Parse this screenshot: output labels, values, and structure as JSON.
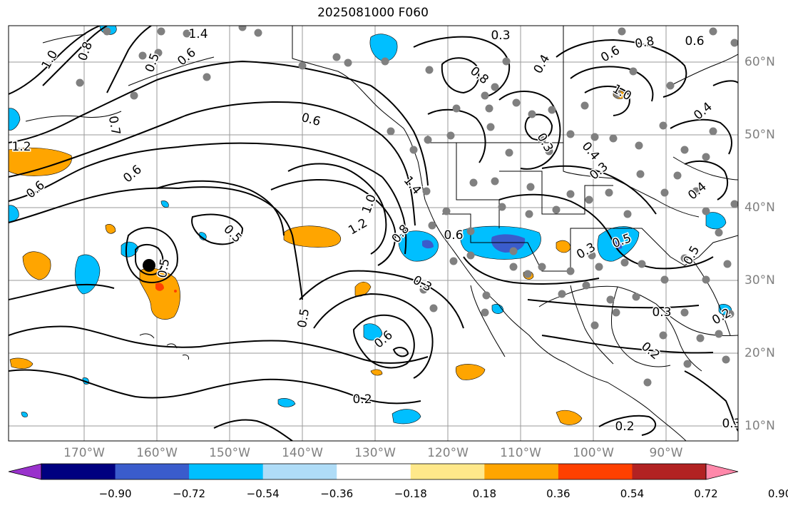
{
  "title": "2025081000 F060",
  "map": {
    "lon_labels": [
      "170°W",
      "160°W",
      "150°W",
      "140°W",
      "130°W",
      "120°W",
      "110°W",
      "100°W",
      "90°W"
    ],
    "lat_labels": [
      "60°N",
      "50°N",
      "40°N",
      "30°N",
      "20°N",
      "10°N"
    ],
    "contour_labels": [
      "0.3",
      "0.8",
      "0.6",
      "0.4",
      "0.5",
      "0.6",
      "1.4",
      "1.0",
      "0.8",
      "0.7",
      "0.6",
      "1.2",
      "0.6",
      "0.5",
      "0.6",
      "1.2",
      "1.0",
      "1.4",
      "0.8",
      "0.6",
      "0.5",
      "0.3",
      "0.5",
      "0.6",
      "0.2",
      "0.3",
      "0.4",
      "0.3",
      "0.5",
      "0.3",
      "0.3",
      "0.2",
      "0.2",
      "1.0",
      "0.8",
      "0.6",
      "0.4",
      "0.5",
      "0.4",
      "0.2",
      "0.3"
    ],
    "colors": {
      "land_outline": "#000000",
      "grid": "#9a9a9a",
      "tick_label": "#808080",
      "dot": "#808080",
      "typhoon_marker": "#000000"
    }
  },
  "colorbar": {
    "ticks": [
      "−0.90",
      "−0.72",
      "−0.54",
      "−0.36",
      "−0.18",
      "0.18",
      "0.36",
      "0.54",
      "0.72",
      "0.90"
    ],
    "colors": [
      "#9932cc",
      "#000080",
      "#3a5ccc",
      "#00bfff",
      "#afdcf7",
      "#ffffff",
      "#ffe88a",
      "#ffa500",
      "#ff4000",
      "#b22222",
      "#ff88aa"
    ]
  }
}
